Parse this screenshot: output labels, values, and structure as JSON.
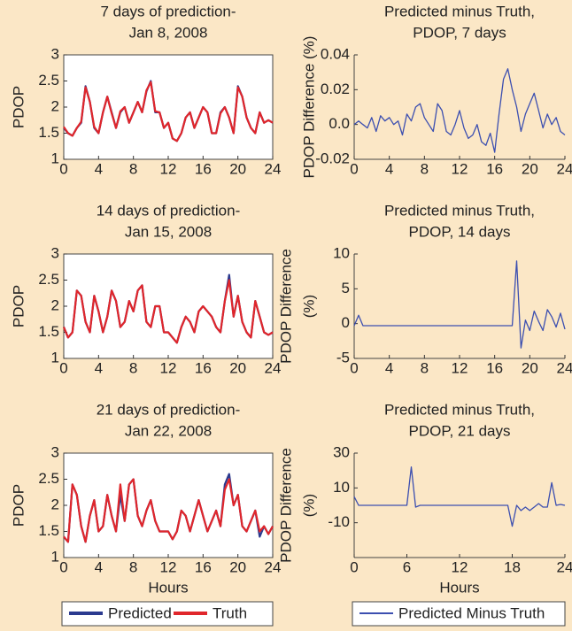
{
  "chart_data": [
    {
      "type": "line",
      "title": [
        "7 days of prediction-",
        "Jan 8, 2008"
      ],
      "y_label": [
        "PDOP"
      ],
      "x": [
        0,
        0.5,
        1,
        1.5,
        2,
        2.5,
        3,
        3.5,
        4,
        4.5,
        5,
        5.5,
        6,
        6.5,
        7,
        7.5,
        8,
        8.5,
        9,
        9.5,
        10,
        10.5,
        11,
        11.5,
        12,
        12.5,
        13,
        13.5,
        14,
        14.5,
        15,
        15.5,
        16,
        16.5,
        17,
        17.5,
        18,
        18.5,
        19,
        19.5,
        20,
        20.5,
        21,
        21.5,
        22,
        22.5,
        23,
        23.5,
        24
      ],
      "series": [
        {
          "color": "#2b3a8f",
          "values": [
            1.6,
            1.5,
            1.45,
            1.6,
            1.7,
            2.4,
            2.1,
            1.6,
            1.5,
            1.9,
            2.2,
            1.9,
            1.6,
            1.9,
            2.0,
            1.7,
            1.9,
            2.1,
            1.9,
            2.3,
            2.5,
            1.9,
            1.9,
            1.6,
            1.7,
            1.4,
            1.35,
            1.5,
            1.8,
            1.9,
            1.6,
            1.8,
            2.0,
            1.9,
            1.5,
            1.5,
            1.9,
            2.0,
            1.8,
            1.5,
            2.4,
            2.2,
            1.8,
            1.6,
            1.5,
            1.9,
            1.7,
            1.75,
            1.7
          ]
        },
        {
          "color": "#e0262b",
          "values": [
            1.62,
            1.5,
            1.45,
            1.6,
            1.72,
            2.38,
            2.1,
            1.62,
            1.5,
            1.9,
            2.2,
            1.88,
            1.6,
            1.92,
            2.0,
            1.7,
            1.9,
            2.1,
            1.9,
            2.32,
            2.48,
            1.92,
            1.9,
            1.6,
            1.7,
            1.4,
            1.35,
            1.5,
            1.8,
            1.9,
            1.6,
            1.8,
            2.0,
            1.9,
            1.5,
            1.5,
            1.88,
            2.0,
            1.8,
            1.5,
            2.38,
            2.2,
            1.8,
            1.6,
            1.5,
            1.9,
            1.7,
            1.75,
            1.7
          ]
        }
      ],
      "xlim": [
        0,
        24
      ],
      "xticks": [
        0,
        4,
        8,
        12,
        16,
        20,
        24
      ],
      "ylim": [
        1,
        3
      ],
      "yticks": [
        1,
        1.5,
        2,
        2.5,
        3
      ]
    },
    {
      "type": "line",
      "title": [
        "Predicted minus Truth,",
        "PDOP, 7 days"
      ],
      "y_label": [
        "PDOP Difference (%)"
      ],
      "x": [
        0,
        0.5,
        1,
        1.5,
        2,
        2.5,
        3,
        3.5,
        4,
        4.5,
        5,
        5.5,
        6,
        6.5,
        7,
        7.5,
        8,
        8.5,
        9,
        9.5,
        10,
        10.5,
        11,
        11.5,
        12,
        12.5,
        13,
        13.5,
        14,
        14.5,
        15,
        15.5,
        16,
        16.5,
        17,
        17.5,
        18,
        18.5,
        19,
        19.5,
        20,
        20.5,
        21,
        21.5,
        22,
        22.5,
        23,
        23.5,
        24
      ],
      "series": [
        {
          "color": "#3c4fb0",
          "values": [
            0.0,
            0.002,
            0.0,
            -0.002,
            0.004,
            -0.004,
            0.005,
            0.002,
            0.004,
            0.0,
            0.002,
            -0.006,
            0.006,
            0.002,
            0.01,
            0.012,
            0.004,
            0.0,
            -0.004,
            0.012,
            0.008,
            -0.004,
            -0.006,
            0.0,
            0.008,
            -0.002,
            -0.008,
            -0.006,
            0.0,
            -0.01,
            -0.012,
            -0.005,
            -0.016,
            0.006,
            0.026,
            0.032,
            0.02,
            0.01,
            -0.004,
            0.006,
            0.012,
            0.018,
            0.008,
            -0.002,
            0.006,
            0.0,
            0.004,
            -0.004,
            -0.006
          ]
        }
      ],
      "xlim": [
        0,
        24
      ],
      "xticks": [
        0,
        4,
        8,
        12,
        16,
        20,
        24
      ],
      "ylim": [
        -0.02,
        0.04
      ],
      "yticks": [
        -0.02,
        {
          "value": 0,
          "label": "0.0"
        },
        0.02,
        0.04
      ]
    },
    {
      "type": "line",
      "title": [
        "14 days of prediction-",
        "Jan 15, 2008"
      ],
      "y_label": [
        "PDOP"
      ],
      "x": [
        0,
        0.5,
        1,
        1.5,
        2,
        2.5,
        3,
        3.5,
        4,
        4.5,
        5,
        5.5,
        6,
        6.5,
        7,
        7.5,
        8,
        8.5,
        9,
        9.5,
        10,
        10.5,
        11,
        11.5,
        12,
        12.5,
        13,
        13.5,
        14,
        14.5,
        15,
        15.5,
        16,
        16.5,
        17,
        17.5,
        18,
        18.5,
        19,
        19.5,
        20,
        20.5,
        21,
        21.5,
        22,
        22.5,
        23,
        23.5,
        24
      ],
      "series": [
        {
          "color": "#2b3a8f",
          "values": [
            1.6,
            1.4,
            1.5,
            2.3,
            2.2,
            1.7,
            1.5,
            2.2,
            1.9,
            1.5,
            1.8,
            2.3,
            2.1,
            1.6,
            1.7,
            2.1,
            1.9,
            2.3,
            2.4,
            1.7,
            1.6,
            2.0,
            2.0,
            1.5,
            1.5,
            1.4,
            1.3,
            1.6,
            1.8,
            1.7,
            1.5,
            1.9,
            2.0,
            1.9,
            1.8,
            1.6,
            1.5,
            2.1,
            2.6,
            1.8,
            2.2,
            1.7,
            1.5,
            1.4,
            2.1,
            1.8,
            1.5,
            1.45,
            1.5
          ]
        },
        {
          "color": "#e0262b",
          "values": [
            1.6,
            1.4,
            1.5,
            2.3,
            2.2,
            1.7,
            1.5,
            2.2,
            1.9,
            1.5,
            1.8,
            2.3,
            2.1,
            1.6,
            1.7,
            2.1,
            1.9,
            2.3,
            2.4,
            1.7,
            1.6,
            2.0,
            2.0,
            1.5,
            1.5,
            1.4,
            1.3,
            1.6,
            1.8,
            1.7,
            1.5,
            1.9,
            2.0,
            1.9,
            1.8,
            1.6,
            1.5,
            2.1,
            2.5,
            1.8,
            2.2,
            1.7,
            1.5,
            1.4,
            2.1,
            1.8,
            1.5,
            1.45,
            1.5
          ]
        }
      ],
      "xlim": [
        0,
        24
      ],
      "xticks": [
        0,
        4,
        8,
        12,
        16,
        20,
        24
      ],
      "ylim": [
        1,
        3
      ],
      "yticks": [
        1,
        1.5,
        2,
        2.5,
        3
      ]
    },
    {
      "type": "line",
      "title": [
        "Predicted minus Truth,",
        "PDOP, 14 days"
      ],
      "y_label": [
        "PDOP Difference",
        "(%)"
      ],
      "x": [
        0,
        0.5,
        1,
        1.5,
        2,
        2.5,
        3,
        3.5,
        4,
        4.5,
        5,
        5.5,
        6,
        6.5,
        7,
        7.5,
        8,
        8.5,
        9,
        9.5,
        10,
        10.5,
        11,
        11.5,
        12,
        12.5,
        13,
        13.5,
        14,
        14.5,
        15,
        15.5,
        16,
        16.5,
        17,
        17.5,
        18,
        18.5,
        19,
        19.5,
        20,
        20.5,
        21,
        21.5,
        22,
        22.5,
        23,
        23.5,
        24
      ],
      "series": [
        {
          "color": "#3c4fb0",
          "values": [
            -0.3,
            1.2,
            -0.3,
            -0.3,
            -0.3,
            -0.3,
            -0.3,
            -0.3,
            -0.3,
            -0.3,
            -0.3,
            -0.3,
            -0.3,
            -0.3,
            -0.3,
            -0.3,
            -0.3,
            -0.3,
            -0.3,
            -0.3,
            -0.3,
            -0.3,
            -0.3,
            -0.3,
            -0.3,
            -0.3,
            -0.3,
            -0.3,
            -0.3,
            -0.3,
            -0.3,
            -0.3,
            -0.3,
            -0.3,
            -0.3,
            -0.3,
            -0.3,
            9,
            -3.5,
            0.5,
            -1,
            1.8,
            0.3,
            -1,
            2,
            1,
            -0.5,
            1.5,
            -0.8
          ]
        }
      ],
      "xlim": [
        0,
        24
      ],
      "xticks": [
        0,
        4,
        8,
        12,
        16,
        20,
        24
      ],
      "ylim": [
        -5,
        10
      ],
      "yticks": [
        -5,
        0,
        5,
        10
      ]
    },
    {
      "type": "line",
      "title": [
        "21 days of prediction-",
        "Jan 22, 2008"
      ],
      "y_label": [
        "PDOP"
      ],
      "x_label": "Hours",
      "x": [
        0,
        0.5,
        1,
        1.5,
        2,
        2.5,
        3,
        3.5,
        4,
        4.5,
        5,
        5.5,
        6,
        6.5,
        7,
        7.5,
        8,
        8.5,
        9,
        9.5,
        10,
        10.5,
        11,
        11.5,
        12,
        12.5,
        13,
        13.5,
        14,
        14.5,
        15,
        15.5,
        16,
        16.5,
        17,
        17.5,
        18,
        18.5,
        19,
        19.5,
        20,
        20.5,
        21,
        21.5,
        22,
        22.5,
        23,
        23.5,
        24
      ],
      "series": [
        {
          "name": "Predicted",
          "color": "#2b3a8f",
          "values": [
            1.4,
            1.3,
            2.4,
            2.2,
            1.6,
            1.3,
            1.8,
            2.1,
            1.5,
            1.6,
            2.2,
            1.8,
            1.5,
            2.2,
            1.7,
            2.4,
            2.5,
            1.8,
            1.6,
            1.9,
            2.1,
            1.7,
            1.5,
            1.5,
            1.5,
            1.35,
            1.5,
            1.9,
            1.8,
            1.5,
            1.8,
            2.1,
            1.8,
            1.5,
            1.7,
            1.9,
            1.6,
            2.4,
            2.6,
            2.0,
            2.2,
            1.6,
            1.5,
            1.7,
            1.9,
            1.4,
            1.6,
            1.45,
            1.6
          ]
        },
        {
          "name": "Truth",
          "color": "#e0262b",
          "values": [
            1.4,
            1.3,
            2.4,
            2.2,
            1.6,
            1.3,
            1.8,
            2.1,
            1.5,
            1.6,
            2.2,
            1.8,
            1.5,
            2.4,
            1.7,
            2.4,
            2.5,
            1.8,
            1.6,
            1.9,
            2.1,
            1.7,
            1.5,
            1.5,
            1.5,
            1.35,
            1.5,
            1.9,
            1.8,
            1.5,
            1.8,
            2.1,
            1.8,
            1.5,
            1.7,
            1.9,
            1.6,
            2.3,
            2.5,
            2.0,
            2.2,
            1.6,
            1.5,
            1.7,
            1.9,
            1.5,
            1.6,
            1.45,
            1.6
          ]
        }
      ],
      "xlim": [
        0,
        24
      ],
      "xticks": [
        0,
        4,
        8,
        12,
        16,
        20,
        24
      ],
      "ylim": [
        1,
        3
      ],
      "yticks": [
        1,
        1.5,
        2,
        2.5,
        3
      ]
    },
    {
      "type": "line",
      "title": [
        "Predicted minus Truth,",
        "PDOP, 21 days"
      ],
      "y_label": [
        "PDOP Difference",
        "(%)"
      ],
      "x_label": "Hours",
      "x": [
        0,
        0.5,
        1,
        1.5,
        2,
        2.5,
        3,
        3.5,
        4,
        4.5,
        5,
        5.5,
        6,
        6.5,
        7,
        7.5,
        8,
        8.5,
        9,
        9.5,
        10,
        10.5,
        11,
        11.5,
        12,
        12.5,
        13,
        13.5,
        14,
        14.5,
        15,
        15.5,
        16,
        16.5,
        17,
        17.5,
        18,
        18.5,
        19,
        19.5,
        20,
        20.5,
        21,
        21.5,
        22,
        22.5,
        23,
        23.5,
        24
      ],
      "series": [
        {
          "name": "Predicted Minus Truth",
          "color": "#3c4fb0",
          "values": [
            5,
            0,
            0,
            0,
            0,
            0,
            0,
            0,
            0,
            0,
            0,
            0,
            0,
            22,
            -1,
            0,
            0,
            0,
            0,
            0,
            0,
            0,
            0,
            0,
            0,
            0,
            0,
            0,
            0,
            0,
            0,
            0,
            0,
            0,
            0,
            0,
            -12,
            0,
            -3,
            -1,
            -3,
            -1,
            1,
            -1,
            -1,
            13,
            0,
            0.5,
            0
          ]
        }
      ],
      "xlim": [
        0,
        24
      ],
      "xticks": [
        0,
        6,
        12,
        18,
        24
      ],
      "ylim": [
        -30,
        30
      ],
      "yticks": [
        -10,
        10,
        30
      ]
    }
  ]
}
